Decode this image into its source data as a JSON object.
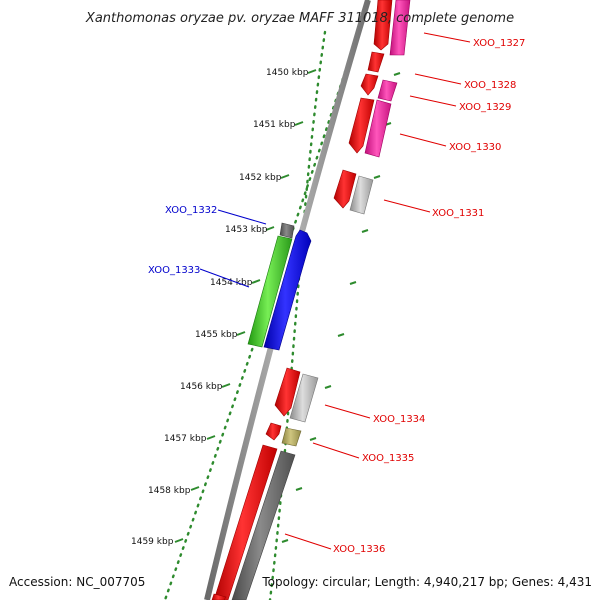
{
  "title": "Xanthomonas oryzae pv. oryzae MAFF 311018, complete genome",
  "footer": {
    "accession": "Accession: NC_007705",
    "topology": "Topology: circular; Length: 4,940,217 bp; Genes: 4,431"
  },
  "colors": {
    "backbone": "#8a8a8a",
    "tick": "#2e8b2e",
    "forward_label": "#e00000",
    "reverse_label": "#0000cc",
    "red": "#ee1111",
    "pink": "#ee2299",
    "gray": "#aaaaaa",
    "darkgray": "#666666",
    "blue": "#1111dd",
    "green": "#33bb22",
    "olive": "#aaa050"
  },
  "ticks": [
    {
      "kbp": 1450,
      "label": "1450 kbp"
    },
    {
      "kbp": 1451,
      "label": "1451 kbp"
    },
    {
      "kbp": 1452,
      "label": "1452 kbp"
    },
    {
      "kbp": 1453,
      "label": "1453 kbp"
    },
    {
      "kbp": 1454,
      "label": "1454 kbp"
    },
    {
      "kbp": 1455,
      "label": "1455 kbp"
    },
    {
      "kbp": 1456,
      "label": "1456 kbp"
    },
    {
      "kbp": 1457,
      "label": "1457 kbp"
    },
    {
      "kbp": 1458,
      "label": "1458 kbp"
    },
    {
      "kbp": 1459,
      "label": "1459 kbp"
    }
  ],
  "labels": [
    {
      "text": "XOO_1327",
      "strand": "+"
    },
    {
      "text": "XOO_1328",
      "strand": "+"
    },
    {
      "text": "XOO_1329",
      "strand": "+"
    },
    {
      "text": "XOO_1330",
      "strand": "+"
    },
    {
      "text": "XOO_1331",
      "strand": "+"
    },
    {
      "text": "XOO_1332",
      "strand": "-"
    },
    {
      "text": "XOO_1333",
      "strand": "-"
    },
    {
      "text": "XOO_1334",
      "strand": "+"
    },
    {
      "text": "XOO_1335",
      "strand": "+"
    },
    {
      "text": "XOO_1336",
      "strand": "+"
    }
  ]
}
